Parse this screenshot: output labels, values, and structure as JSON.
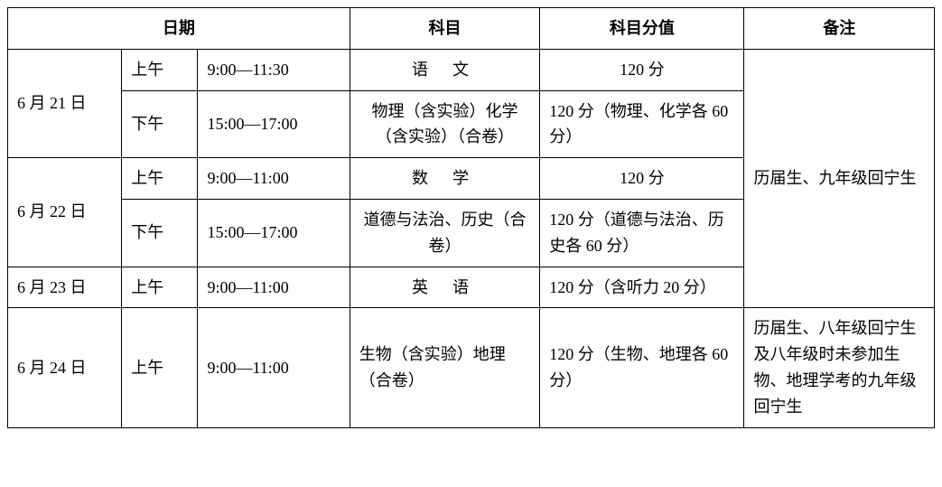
{
  "header": {
    "date": "日期",
    "subject": "科目",
    "score": "科目分值",
    "note": "备注"
  },
  "rows": [
    {
      "date": "6 月 21 日",
      "sessions": [
        {
          "ampm": "上午",
          "time": "9:00—11:30",
          "subject": "语文",
          "subject_spaced": true,
          "score": "120 分"
        },
        {
          "ampm": "下午",
          "time": "15:00—17:00",
          "subject": "物理（含实验）化学（含实验）（合卷）",
          "subject_spaced": false,
          "score": "120 分（物理、化学各 60 分）"
        }
      ]
    },
    {
      "date": "6 月 22 日",
      "sessions": [
        {
          "ampm": "上午",
          "time": "9:00—11:00",
          "subject": "数学",
          "subject_spaced": true,
          "score": "120 分"
        },
        {
          "ampm": "下午",
          "time": "15:00—17:00",
          "subject": "道德与法治、历史（合卷）",
          "subject_spaced": false,
          "score": "120 分（道德与法治、历史各 60 分）"
        }
      ]
    },
    {
      "date": "6 月 23 日",
      "sessions": [
        {
          "ampm": "上午",
          "time": "9:00—11:00",
          "subject": "英语",
          "subject_spaced": true,
          "score": "120 分（含听力 20 分）"
        }
      ]
    },
    {
      "date": "6 月 24 日",
      "sessions": [
        {
          "ampm": "上午",
          "time": "9:00—11:00",
          "subject": "生物（含实验）地理（合卷）",
          "subject_spaced": false,
          "score": "120 分（生物、地理各 60 分）"
        }
      ]
    }
  ],
  "notes": {
    "block1": "历届生、九年级回宁生",
    "block2": "历届生、八年级回宁生及八年级时未参加生物、地理学考的九年级回宁生"
  },
  "style": {
    "font_size_pt": 18,
    "border_color": "#000000",
    "background": "#ffffff",
    "widths": {
      "date": 120,
      "ampm": 80,
      "time": 160,
      "subject": 200,
      "score": 215,
      "note": 200
    }
  }
}
